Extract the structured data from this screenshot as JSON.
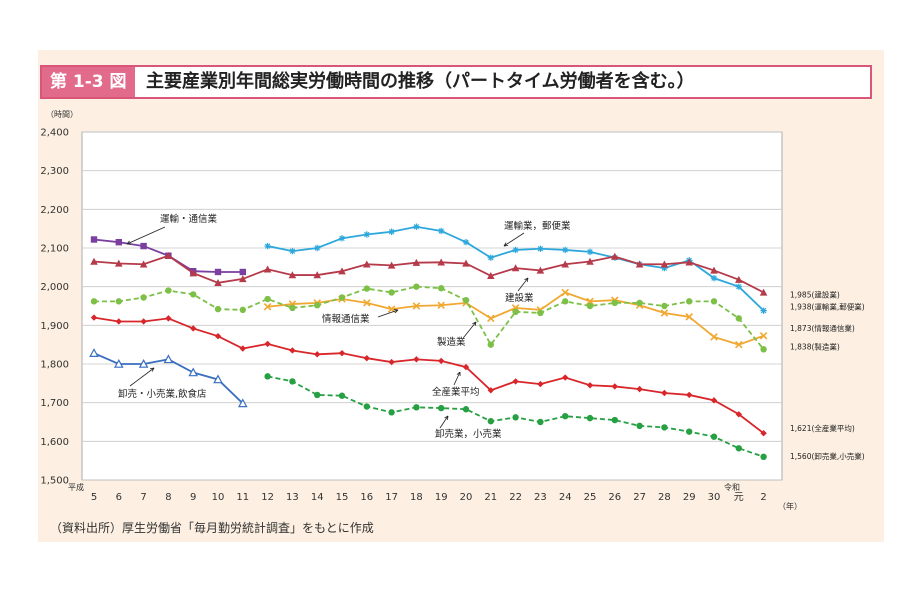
{
  "header": {
    "badge": "第 1-3 図",
    "title": "主要産業別年間総実労働時間の推移（パートタイム労働者を含む。）"
  },
  "footer": {
    "source": "（資料出所）厚生労働省「毎月勤労統計調査」をもとに作成"
  },
  "chart_data": {
    "type": "line",
    "ylabel": "（時間）",
    "xunit": "（年）",
    "era_labels": {
      "heisei": "平成",
      "reiwa": "令和"
    },
    "ylim": [
      1500,
      2400
    ],
    "yticks": [
      1500,
      1600,
      1700,
      1800,
      1900,
      2000,
      2100,
      2200,
      2300,
      2400
    ],
    "ytick_labels": [
      "1,500",
      "1,600",
      "1,700",
      "1,800",
      "1,900",
      "2,000",
      "2,100",
      "2,200",
      "2,300",
      "2,400"
    ],
    "categories": [
      "5",
      "6",
      "7",
      "8",
      "9",
      "10",
      "11",
      "12",
      "13",
      "14",
      "15",
      "16",
      "17",
      "18",
      "19",
      "20",
      "21",
      "22",
      "23",
      "24",
      "25",
      "26",
      "27",
      "28",
      "29",
      "30",
      "元",
      "2"
    ],
    "grid": true,
    "series": [
      {
        "name": "運輸・通信業",
        "color": "#7a3fa0",
        "marker": "square",
        "values": [
          2122,
          2115,
          2105,
          2080,
          2040,
          2038,
          2038,
          null,
          null,
          null,
          null,
          null,
          null,
          null,
          null,
          null,
          null,
          null,
          null,
          null,
          null,
          null,
          null,
          null,
          null,
          null,
          null,
          null
        ]
      },
      {
        "name": "卸売・小売業,飲食店",
        "color": "#3a6fc0",
        "marker": "triangle-open",
        "values": [
          1828,
          1800,
          1800,
          1812,
          1778,
          1760,
          1698,
          null,
          null,
          null,
          null,
          null,
          null,
          null,
          null,
          null,
          null,
          null,
          null,
          null,
          null,
          null,
          null,
          null,
          null,
          null,
          null,
          null
        ]
      },
      {
        "name": "運輸業，郵便業",
        "color": "#2ea8dc",
        "marker": "star",
        "end_label": "1,938(運輸業,郵便業)",
        "values": [
          null,
          null,
          null,
          null,
          null,
          null,
          null,
          2105,
          2092,
          2100,
          2125,
          2135,
          2142,
          2155,
          2144,
          2115,
          2075,
          2095,
          2098,
          2095,
          2090,
          2075,
          2058,
          2048,
          2068,
          2022,
          2000,
          1938
        ]
      },
      {
        "name": "建設業",
        "color": "#b53a4a",
        "marker": "triangle",
        "end_label": "1,985(建設業)",
        "values": [
          2065,
          2060,
          2058,
          2080,
          2035,
          2010,
          2020,
          2045,
          2030,
          2030,
          2040,
          2058,
          2055,
          2062,
          2063,
          2060,
          2028,
          2048,
          2042,
          2058,
          2065,
          2078,
          2058,
          2058,
          2063,
          2042,
          2018,
          1985
        ]
      },
      {
        "name": "情報通信業",
        "color": "#f0a830",
        "marker": "x",
        "end_label": "1,873(情報通信業)",
        "values": [
          null,
          null,
          null,
          null,
          null,
          null,
          null,
          1948,
          1955,
          1958,
          1968,
          1958,
          1942,
          1950,
          1952,
          1958,
          1918,
          1945,
          1940,
          1985,
          1962,
          1965,
          1952,
          1932,
          1922,
          1870,
          1850,
          1873
        ]
      },
      {
        "name": "製造業",
        "color": "#7cc047",
        "marker": "circle",
        "dashed": true,
        "end_label": "1,838(製造業)",
        "values": [
          1962,
          1962,
          1972,
          1990,
          1980,
          1942,
          1940,
          1968,
          1945,
          1952,
          1972,
          1995,
          1985,
          2000,
          1996,
          1965,
          1850,
          1935,
          1932,
          1962,
          1950,
          1958,
          1958,
          1950,
          1962,
          1962,
          1918,
          1838
        ]
      },
      {
        "name": "全産業平均",
        "color": "#d8262a",
        "marker": "diamond",
        "end_label": "1,621(全産業平均)",
        "values": [
          1920,
          1910,
          1910,
          1918,
          1892,
          1872,
          1840,
          1852,
          1835,
          1825,
          1828,
          1815,
          1805,
          1812,
          1808,
          1792,
          1732,
          1755,
          1748,
          1765,
          1745,
          1742,
          1735,
          1725,
          1720,
          1706,
          1670,
          1621
        ]
      },
      {
        "name": "卸売業，小売業",
        "color": "#27a043",
        "marker": "circle",
        "dashed": true,
        "end_label": "1,560(卸売業,小売業)",
        "values": [
          null,
          null,
          null,
          null,
          null,
          null,
          null,
          1768,
          1755,
          1720,
          1718,
          1690,
          1675,
          1688,
          1686,
          1683,
          1652,
          1662,
          1650,
          1665,
          1660,
          1655,
          1640,
          1636,
          1625,
          1612,
          1582,
          1560
        ]
      }
    ]
  }
}
